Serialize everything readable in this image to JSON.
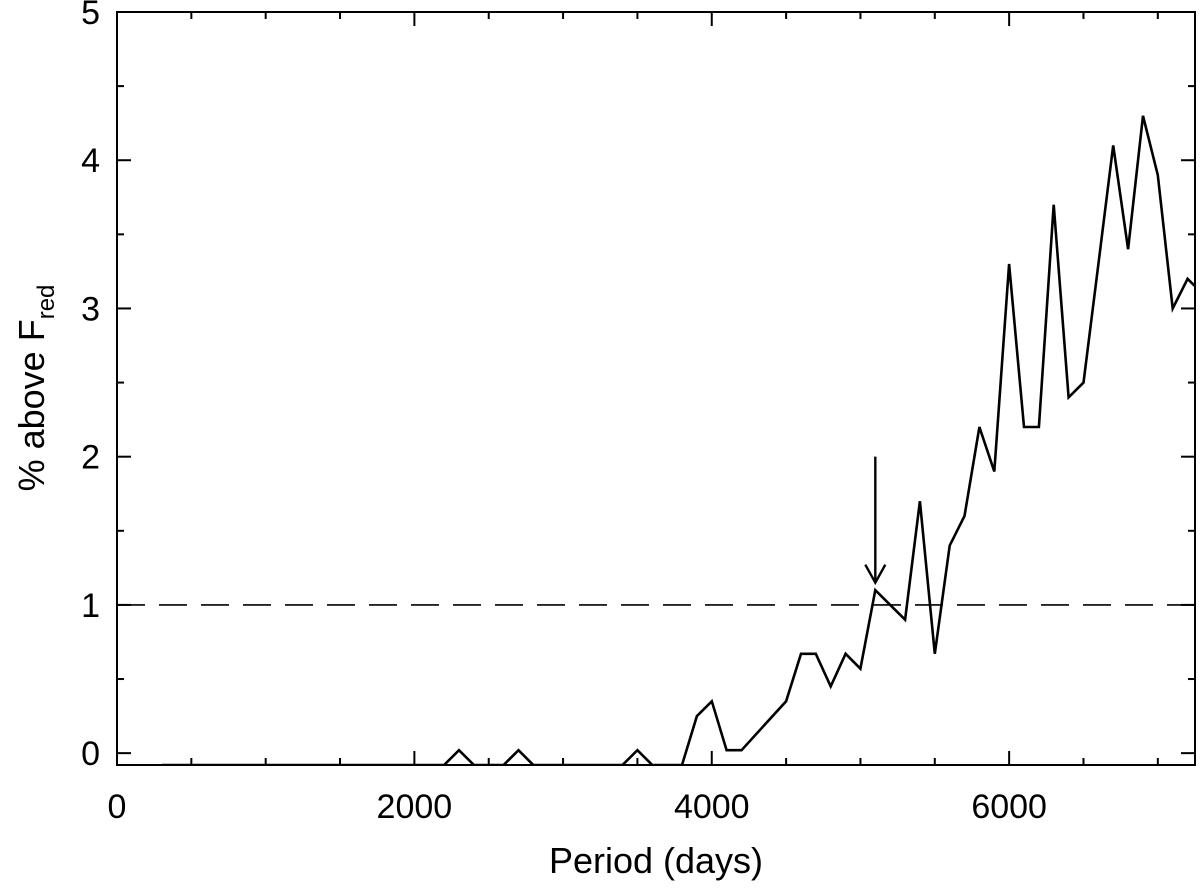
{
  "chart_data": {
    "type": "line",
    "xlabel": "Period (days)",
    "ylabel": "% above F",
    "ylabel_subscript": "red",
    "xlim": [
      0,
      7250
    ],
    "ylim": [
      -0.08,
      5
    ],
    "xticks": [
      0,
      2000,
      4000,
      6000
    ],
    "xtick_labels": [
      "0",
      "2000",
      "4000",
      "6000"
    ],
    "yticks": [
      0,
      1,
      2,
      3,
      4,
      5
    ],
    "ytick_labels": [
      "0",
      "1",
      "2",
      "3",
      "4",
      "5"
    ],
    "grid": false,
    "series": [
      {
        "color": "#000000",
        "x": [
          300,
          2200,
          2300,
          2400,
          2600,
          2700,
          2800,
          3400,
          3500,
          3600,
          3800,
          3900,
          4000,
          4100,
          4200,
          4500,
          4600,
          4700,
          4800,
          4900,
          5000,
          5100,
          5200,
          5300,
          5400,
          5500,
          5600,
          5700,
          5800,
          5900,
          6000,
          6100,
          6200,
          6300,
          6400,
          6500,
          6600,
          6700,
          6800,
          6900,
          7000,
          7100,
          7200,
          7300
        ],
        "y": [
          -0.08,
          -0.08,
          0.02,
          -0.08,
          -0.08,
          0.02,
          -0.08,
          -0.08,
          0.02,
          -0.08,
          -0.08,
          0.25,
          0.35,
          0.02,
          0.02,
          0.35,
          0.67,
          0.67,
          0.45,
          0.67,
          0.57,
          1.1,
          1.0,
          0.9,
          1.7,
          0.67,
          1.4,
          1.6,
          2.2,
          1.9,
          3.3,
          2.2,
          2.2,
          3.7,
          2.4,
          2.5,
          3.3,
          4.1,
          3.4,
          4.3,
          3.9,
          3.0,
          3.2,
          3.1
        ]
      }
    ],
    "reference_lines": [
      {
        "orientation": "horizontal",
        "y": 1,
        "style": "dashed",
        "color": "#000000"
      }
    ],
    "annotations": [
      {
        "type": "arrow",
        "x": 5100,
        "y_from": 2.0,
        "y_to": 1.15,
        "direction": "down",
        "color": "#000000"
      }
    ]
  }
}
